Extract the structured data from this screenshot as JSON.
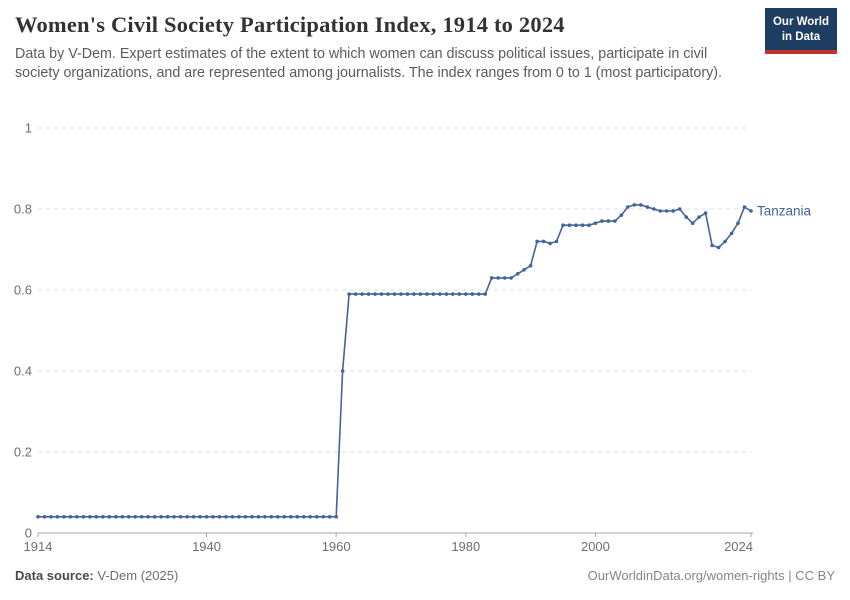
{
  "header": {
    "title": "Women's Civil Society Participation Index, 1914 to 2024",
    "subtitle": "Data by V-Dem. Expert estimates of the extent to which women can discuss political issues, participate in civil society organizations, and are represented among journalists. The index ranges from 0 to 1 (most participatory).",
    "logo": {
      "line1": "Our World",
      "line2": "in Data",
      "bg_color": "#1d3d63",
      "accent_color": "#bc352c"
    }
  },
  "chart_data": {
    "type": "line",
    "title": "Women's Civil Society Participation Index, 1914 to 2024",
    "xlabel": "",
    "ylabel": "",
    "xlim": [
      1914,
      2024
    ],
    "ylim": [
      0,
      1
    ],
    "x_ticks": [
      1914,
      1940,
      1960,
      1980,
      2000,
      2024
    ],
    "y_ticks": [
      0,
      0.2,
      0.4,
      0.6,
      0.8,
      1
    ],
    "grid": "horizontal-dashed",
    "legend_position": "end-of-line-label",
    "series": [
      {
        "name": "Tanzania",
        "color": "#44639c",
        "marker": "circle",
        "x": [
          1914,
          1915,
          1916,
          1917,
          1918,
          1919,
          1920,
          1921,
          1922,
          1923,
          1924,
          1925,
          1926,
          1927,
          1928,
          1929,
          1930,
          1931,
          1932,
          1933,
          1934,
          1935,
          1936,
          1937,
          1938,
          1939,
          1940,
          1941,
          1942,
          1943,
          1944,
          1945,
          1946,
          1947,
          1948,
          1949,
          1950,
          1951,
          1952,
          1953,
          1954,
          1955,
          1956,
          1957,
          1958,
          1959,
          1960,
          1961,
          1962,
          1963,
          1964,
          1965,
          1966,
          1967,
          1968,
          1969,
          1970,
          1971,
          1972,
          1973,
          1974,
          1975,
          1976,
          1977,
          1978,
          1979,
          1980,
          1981,
          1982,
          1983,
          1984,
          1985,
          1986,
          1987,
          1988,
          1989,
          1990,
          1991,
          1992,
          1993,
          1994,
          1995,
          1996,
          1997,
          1998,
          1999,
          2000,
          2001,
          2002,
          2003,
          2004,
          2005,
          2006,
          2007,
          2008,
          2009,
          2010,
          2011,
          2012,
          2013,
          2014,
          2015,
          2016,
          2017,
          2018,
          2019,
          2020,
          2021,
          2022,
          2023,
          2024
        ],
        "values": [
          0.04,
          0.04,
          0.04,
          0.04,
          0.04,
          0.04,
          0.04,
          0.04,
          0.04,
          0.04,
          0.04,
          0.04,
          0.04,
          0.04,
          0.04,
          0.04,
          0.04,
          0.04,
          0.04,
          0.04,
          0.04,
          0.04,
          0.04,
          0.04,
          0.04,
          0.04,
          0.04,
          0.04,
          0.04,
          0.04,
          0.04,
          0.04,
          0.04,
          0.04,
          0.04,
          0.04,
          0.04,
          0.04,
          0.04,
          0.04,
          0.04,
          0.04,
          0.04,
          0.04,
          0.04,
          0.04,
          0.04,
          0.4,
          0.59,
          0.59,
          0.59,
          0.59,
          0.59,
          0.59,
          0.59,
          0.59,
          0.59,
          0.59,
          0.59,
          0.59,
          0.59,
          0.59,
          0.59,
          0.59,
          0.59,
          0.59,
          0.59,
          0.59,
          0.59,
          0.59,
          0.63,
          0.63,
          0.63,
          0.63,
          0.64,
          0.65,
          0.66,
          0.72,
          0.72,
          0.715,
          0.72,
          0.76,
          0.76,
          0.76,
          0.76,
          0.76,
          0.765,
          0.77,
          0.77,
          0.77,
          0.785,
          0.805,
          0.81,
          0.81,
          0.805,
          0.8,
          0.795,
          0.795,
          0.795,
          0.8,
          0.78,
          0.765,
          0.78,
          0.79,
          0.71,
          0.705,
          0.72,
          0.74,
          0.765,
          0.805,
          0.795
        ]
      }
    ],
    "end_label": "Tanzania",
    "axis_text_color": "#6e6e6e",
    "grid_color": "#dcdcdc",
    "axis_line_color": "#a5a5a5"
  },
  "footer": {
    "source_label": "Data source:",
    "source_value": "V-Dem (2025)",
    "credit": "OurWorldinData.org/women-rights | CC BY"
  }
}
